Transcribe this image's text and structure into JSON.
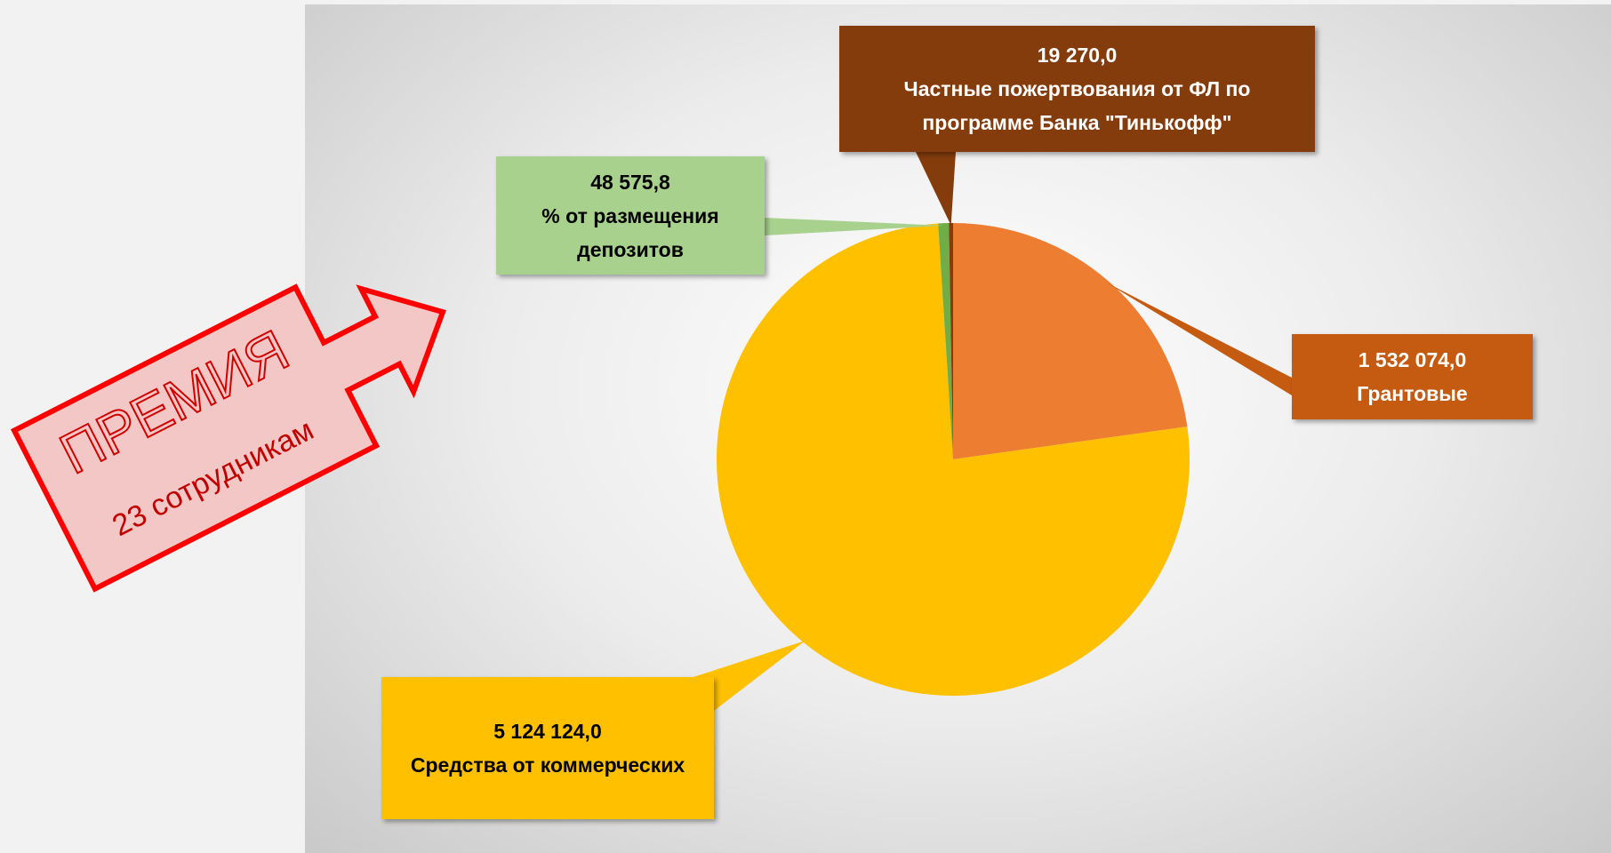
{
  "chart_data": {
    "type": "pie",
    "categories": [
      "Грантовые",
      "Средства от коммерческих",
      "% от размещения депозитов",
      "Частные пожертвования от ФЛ по программе Банка \"Тинькофф\""
    ],
    "values": [
      1532074.0,
      5124124.0,
      48575.8,
      19270.0
    ],
    "value_labels": [
      "1 532 074,0",
      "5 124 124,0",
      "48 575,8",
      "19 270,0"
    ],
    "colors": [
      "#ED7D31",
      "#FFC000",
      "#70AD47",
      "#843C0C"
    ],
    "label_colors": [
      "#C55A11",
      "#FFC000",
      "#A9D18E",
      "#843C0C"
    ],
    "annotations": [
      "ПРЕМИЯ",
      "23 сотрудникам"
    ]
  }
}
